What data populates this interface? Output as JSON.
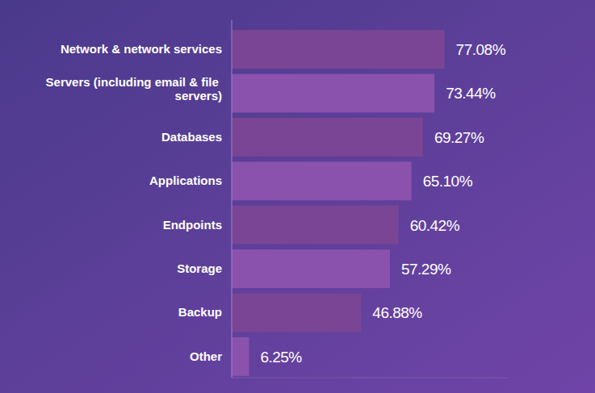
{
  "chart_data": {
    "type": "bar",
    "orientation": "horizontal",
    "categories": [
      "Network & network services",
      "Servers (including email & file servers)",
      "Databases",
      "Applications",
      "Endpoints",
      "Storage",
      "Backup",
      "Other"
    ],
    "values": [
      77.08,
      73.44,
      69.27,
      65.1,
      60.42,
      57.29,
      46.88,
      6.25
    ],
    "value_labels": [
      "77.08%",
      "73.44%",
      "69.27%",
      "65.10%",
      "60.42%",
      "57.29%",
      "46.88%",
      "6.25%"
    ],
    "colors": [
      "#7a4595",
      "#8a52ad",
      "#7a4595",
      "#8a52ad",
      "#7a4595",
      "#8a52ad",
      "#7a4595",
      "#8a52ad"
    ],
    "xlim": [
      0,
      100
    ],
    "data_labels": true,
    "tick_labels": "y",
    "grid": false
  }
}
